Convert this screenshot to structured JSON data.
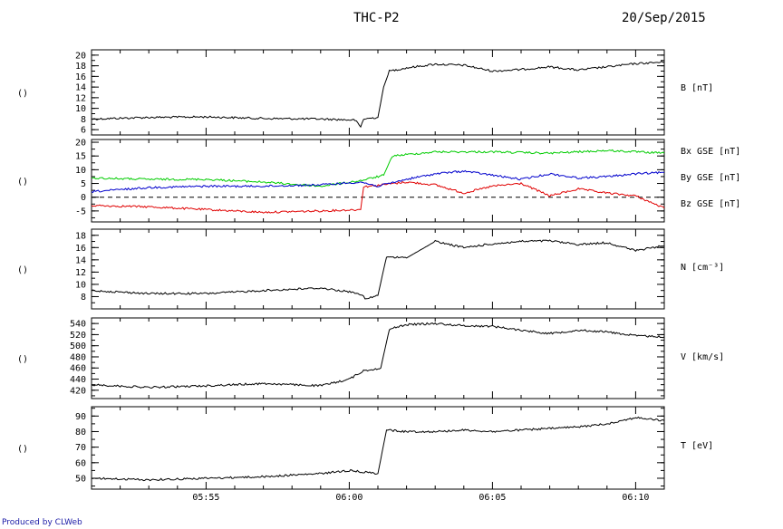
{
  "header": {
    "probe": "THC-P2",
    "date": "20/Sep/2015"
  },
  "footer": {
    "credit": "Produced by CLWeb"
  },
  "chart_data": {
    "type": "line",
    "x_range": [
      "05:51",
      "06:11"
    ],
    "x_ticks": [
      {
        "label": "05:55",
        "time": "05:55"
      },
      {
        "label": "06:00",
        "time": "06:00"
      },
      {
        "label": "06:05",
        "time": "06:05"
      },
      {
        "label": "06:10",
        "time": "06:10"
      }
    ],
    "panels": [
      {
        "name": "B",
        "side_label": "()",
        "ylim": [
          5,
          21
        ],
        "y_ticks": [
          6,
          8,
          10,
          12,
          14,
          16,
          18,
          20
        ],
        "series": [
          {
            "label": "B [nT]",
            "color": "#000000",
            "points": [
              [
                "05:51",
                8.0
              ],
              [
                "05:53",
                8.3
              ],
              [
                "05:55",
                8.4
              ],
              [
                "05:57",
                8.1
              ],
              [
                "05:59",
                8.0
              ],
              [
                "06:00.2",
                7.8
              ],
              [
                "06:00.4",
                6.5
              ],
              [
                "06:00.5",
                8.0
              ],
              [
                "06:01",
                8.3
              ],
              [
                "06:01.2",
                14.0
              ],
              [
                "06:01.4",
                17.0
              ],
              [
                "06:02",
                17.6
              ],
              [
                "06:03",
                18.3
              ],
              [
                "06:04",
                18.1
              ],
              [
                "06:05",
                17.0
              ],
              [
                "06:06",
                17.3
              ],
              [
                "06:07",
                17.8
              ],
              [
                "06:08",
                17.2
              ],
              [
                "06:09",
                17.8
              ],
              [
                "06:10",
                18.4
              ],
              [
                "06:11",
                18.7
              ]
            ]
          }
        ]
      },
      {
        "name": "B_GSE",
        "side_label": "()",
        "ylim": [
          -9,
          21
        ],
        "y_ticks": [
          -5,
          0,
          5,
          10,
          15,
          20
        ],
        "zero_line": true,
        "series": [
          {
            "label": "Bx GSE [nT]",
            "color": "#e00000",
            "points": [
              [
                "05:51",
                -3.0
              ],
              [
                "05:53",
                -3.5
              ],
              [
                "05:55",
                -4.5
              ],
              [
                "05:57",
                -5.5
              ],
              [
                "05:59",
                -5.0
              ],
              [
                "06:00.4",
                -4.5
              ],
              [
                "06:00.5",
                3.8
              ],
              [
                "06:02",
                5.5
              ],
              [
                "06:03",
                4.5
              ],
              [
                "06:04",
                1.5
              ],
              [
                "06:05",
                4.0
              ],
              [
                "06:06",
                5.0
              ],
              [
                "06:07",
                0.5
              ],
              [
                "06:08",
                3.0
              ],
              [
                "06:09",
                1.5
              ],
              [
                "06:10",
                0.5
              ],
              [
                "06:11",
                -4.0
              ]
            ]
          },
          {
            "label": "By GSE [nT]",
            "color": "#00cc00",
            "points": [
              [
                "05:51",
                7.0
              ],
              [
                "05:53",
                6.5
              ],
              [
                "05:55",
                6.5
              ],
              [
                "05:57",
                5.5
              ],
              [
                "05:59",
                4.0
              ],
              [
                "06:00.4",
                6.0
              ],
              [
                "06:01.2",
                8.0
              ],
              [
                "06:01.5",
                15.0
              ],
              [
                "06:03",
                16.5
              ],
              [
                "06:05",
                16.5
              ],
              [
                "06:07",
                16.0
              ],
              [
                "06:09",
                17.0
              ],
              [
                "06:11",
                16.0
              ]
            ]
          },
          {
            "label": "Bz GSE [nT]",
            "color": "#0000cc",
            "points": [
              [
                "05:51",
                2.0
              ],
              [
                "05:53",
                3.5
              ],
              [
                "05:55",
                4.0
              ],
              [
                "05:57",
                4.0
              ],
              [
                "05:59",
                4.5
              ],
              [
                "06:00.4",
                5.5
              ],
              [
                "06:01",
                4.0
              ],
              [
                "06:02",
                6.5
              ],
              [
                "06:03",
                8.5
              ],
              [
                "06:04",
                9.5
              ],
              [
                "06:05",
                8.0
              ],
              [
                "06:06",
                6.5
              ],
              [
                "06:07",
                8.5
              ],
              [
                "06:08",
                7.0
              ],
              [
                "06:09",
                7.5
              ],
              [
                "06:10",
                8.5
              ],
              [
                "06:11",
                9.0
              ]
            ]
          }
        ]
      },
      {
        "name": "N",
        "side_label": "()",
        "ylim": [
          6,
          19
        ],
        "y_ticks": [
          8,
          10,
          12,
          14,
          16,
          18
        ],
        "series": [
          {
            "label": "N [cm^-3]",
            "color": "#000000",
            "points": [
              [
                "05:51",
                9.0
              ],
              [
                "05:53",
                8.5
              ],
              [
                "05:55",
                8.5
              ],
              [
                "05:57",
                9.0
              ],
              [
                "05:59",
                9.4
              ],
              [
                "06:00.3",
                8.6
              ],
              [
                "06:00.6",
                7.6
              ],
              [
                "06:01",
                8.2
              ],
              [
                "06:01.3",
                14.5
              ],
              [
                "06:02",
                14.3
              ],
              [
                "06:03",
                17.0
              ],
              [
                "06:04",
                16.0
              ],
              [
                "06:05",
                16.6
              ],
              [
                "06:06",
                17.0
              ],
              [
                "06:07",
                17.1
              ],
              [
                "06:08",
                16.5
              ],
              [
                "06:09",
                16.8
              ],
              [
                "06:10",
                15.5
              ],
              [
                "06:11",
                16.3
              ]
            ]
          }
        ]
      },
      {
        "name": "V",
        "side_label": "()",
        "ylim": [
          405,
          550
        ],
        "y_ticks": [
          420,
          440,
          460,
          480,
          500,
          520,
          540
        ],
        "series": [
          {
            "label": "V [km/s]",
            "color": "#000000",
            "points": [
              [
                "05:51",
                430
              ],
              [
                "05:53",
                425
              ],
              [
                "05:55",
                428
              ],
              [
                "05:57",
                432
              ],
              [
                "05:59",
                428
              ],
              [
                "06:00",
                440
              ],
              [
                "06:00.5",
                455
              ],
              [
                "06:01.1",
                460
              ],
              [
                "06:01.4",
                530
              ],
              [
                "06:02",
                538
              ],
              [
                "06:03",
                540
              ],
              [
                "06:04",
                536
              ],
              [
                "06:05",
                535
              ],
              [
                "06:06",
                528
              ],
              [
                "06:07",
                522
              ],
              [
                "06:08",
                528
              ],
              [
                "06:09",
                525
              ],
              [
                "06:10",
                518
              ],
              [
                "06:11",
                516
              ]
            ]
          }
        ]
      },
      {
        "name": "T",
        "side_label": "()",
        "ylim": [
          43,
          96
        ],
        "y_ticks": [
          50,
          60,
          70,
          80,
          90
        ],
        "series": [
          {
            "label": "T [eV]",
            "color": "#000000",
            "points": [
              [
                "05:51",
                50
              ],
              [
                "05:53",
                49
              ],
              [
                "05:55",
                50
              ],
              [
                "05:57",
                51
              ],
              [
                "05:59",
                53
              ],
              [
                "06:00",
                55
              ],
              [
                "06:01",
                53
              ],
              [
                "06:01.3",
                81
              ],
              [
                "06:02",
                80
              ],
              [
                "06:03",
                80
              ],
              [
                "06:04",
                81
              ],
              [
                "06:05",
                80
              ],
              [
                "06:06",
                81
              ],
              [
                "06:07",
                82
              ],
              [
                "06:08",
                83
              ],
              [
                "06:09",
                85
              ],
              [
                "06:10",
                89
              ],
              [
                "06:11",
                87
              ]
            ]
          }
        ]
      }
    ]
  }
}
